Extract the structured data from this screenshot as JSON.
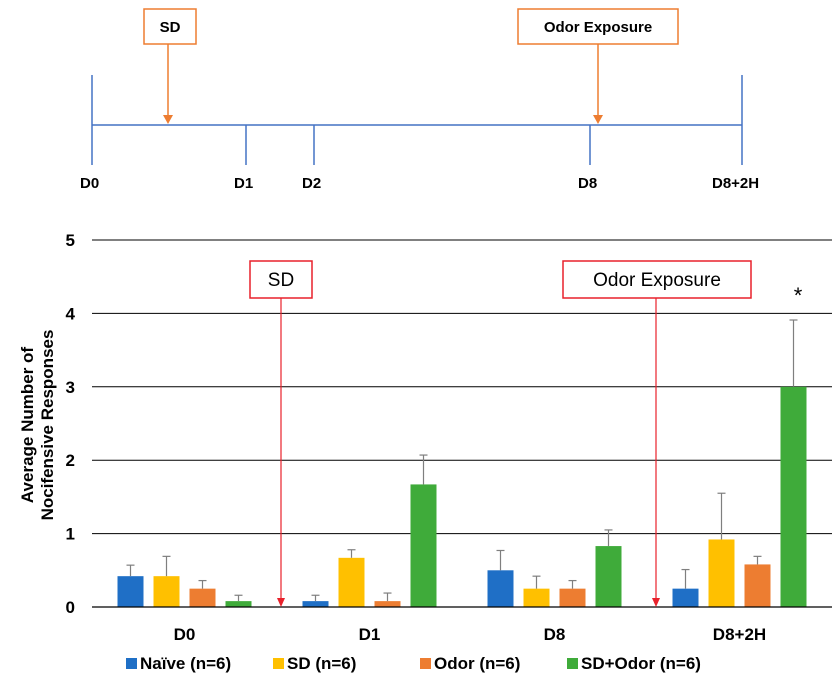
{
  "timeline": {
    "days": [
      "D0",
      "D1",
      "D2",
      "D8",
      "D8+2H"
    ],
    "boxes": [
      {
        "label": "SD"
      },
      {
        "label": "Odor Exposure"
      }
    ],
    "colors": {
      "line": "#4472c4",
      "box": "#ed7d31"
    }
  },
  "chart_data": {
    "type": "bar",
    "categories": [
      "D0",
      "D1",
      "D8",
      "D8+2H"
    ],
    "ylabel_line1": "Average Number of",
    "ylabel_line2": "Nocifensive Responses",
    "ylim": [
      0,
      5
    ],
    "yticks": [
      "0",
      "1",
      "2",
      "3",
      "4",
      "5"
    ],
    "grid": true,
    "legend_position": "bottom",
    "series": [
      {
        "name": "Naïve (n=6)",
        "color": "#1f6fc6",
        "values": [
          0.42,
          0.08,
          0.5,
          0.25
        ],
        "errors": [
          0.15,
          0.08,
          0.27,
          0.26
        ]
      },
      {
        "name": "SD (n=6)",
        "color": "#ffc000",
        "values": [
          0.42,
          0.67,
          0.25,
          0.92
        ],
        "errors": [
          0.27,
          0.11,
          0.17,
          0.63
        ]
      },
      {
        "name": "Odor (n=6)",
        "color": "#ed7d31",
        "values": [
          0.25,
          0.08,
          0.25,
          0.58
        ],
        "errors": [
          0.11,
          0.11,
          0.11,
          0.11
        ]
      },
      {
        "name": "SD+Odor (n=6)",
        "color": "#3fab3a",
        "values": [
          0.08,
          1.67,
          0.83,
          3.0
        ],
        "errors": [
          0.08,
          0.4,
          0.22,
          0.91
        ]
      }
    ],
    "annotations": [
      {
        "label": "SD",
        "color": "#e8212b"
      },
      {
        "label": "Odor Exposure",
        "color": "#e8212b"
      }
    ],
    "significance": {
      "label": "*",
      "category": "D8+2H",
      "series": "SD+Odor (n=6)"
    }
  }
}
